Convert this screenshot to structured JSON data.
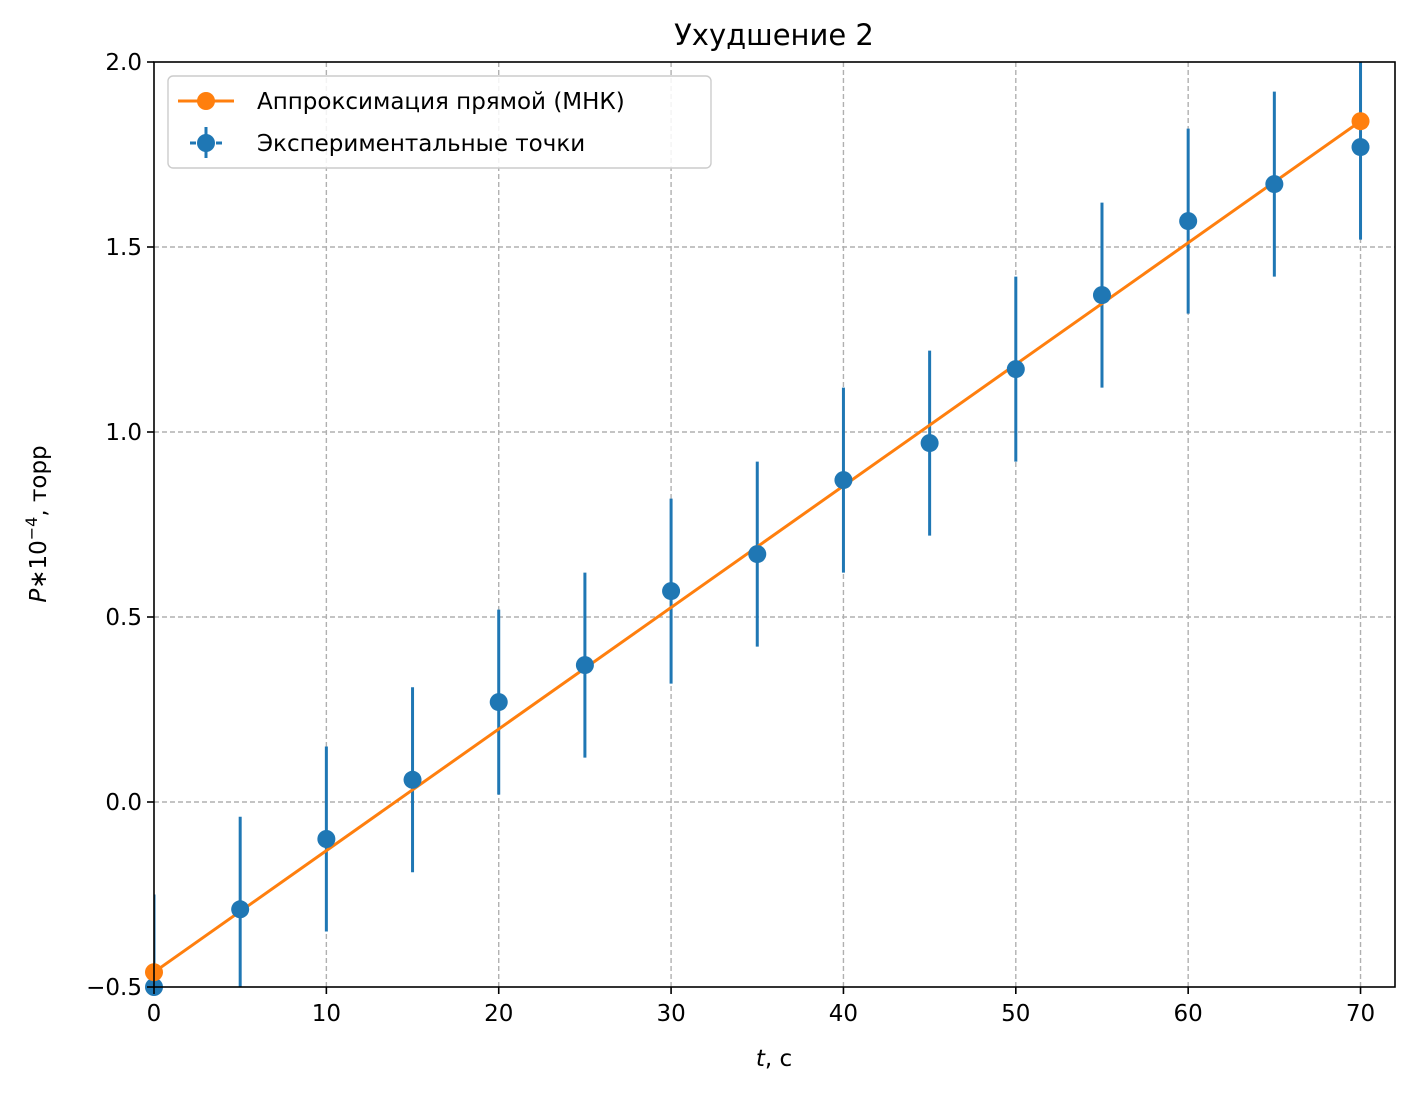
{
  "chart_data": {
    "type": "scatter",
    "title": "Ухудшение 2",
    "xlabel_italic": "t",
    "xlabel_rest": ", с",
    "ylabel_var": "P",
    "ylabel_mid": "∗10",
    "ylabel_exp": "−4",
    "ylabel_rest": ", торр",
    "xlim": [
      0,
      72
    ],
    "ylim": [
      -0.5,
      2.0
    ],
    "grid": true,
    "legend_placement": "top-left",
    "x_ticks": [
      0,
      10,
      20,
      30,
      40,
      50,
      60,
      70
    ],
    "y_ticks": [
      -0.5,
      0.0,
      0.5,
      1.0,
      1.5,
      2.0
    ],
    "x_tick_labels": [
      "0",
      "10",
      "20",
      "30",
      "40",
      "50",
      "60",
      "70"
    ],
    "y_tick_labels": [
      "−0.5",
      "0.0",
      "0.5",
      "1.0",
      "1.5",
      "2.0"
    ],
    "series": [
      {
        "name": "Аппроксимация прямой (МНК)",
        "kind": "line",
        "color": "#ff7f0e",
        "x": [
          0,
          70
        ],
        "y": [
          -0.46,
          1.84
        ]
      },
      {
        "name": "Экспериментальные точки",
        "kind": "errorbar",
        "color": "#1f77b4",
        "x": [
          0,
          5,
          10,
          15,
          20,
          25,
          30,
          35,
          40,
          45,
          50,
          55,
          60,
          65,
          70
        ],
        "y": [
          -0.5,
          -0.29,
          -0.1,
          0.06,
          0.27,
          0.37,
          0.57,
          0.67,
          0.87,
          0.97,
          1.17,
          1.37,
          1.57,
          1.67,
          1.77
        ],
        "yerr": 0.25
      }
    ]
  }
}
